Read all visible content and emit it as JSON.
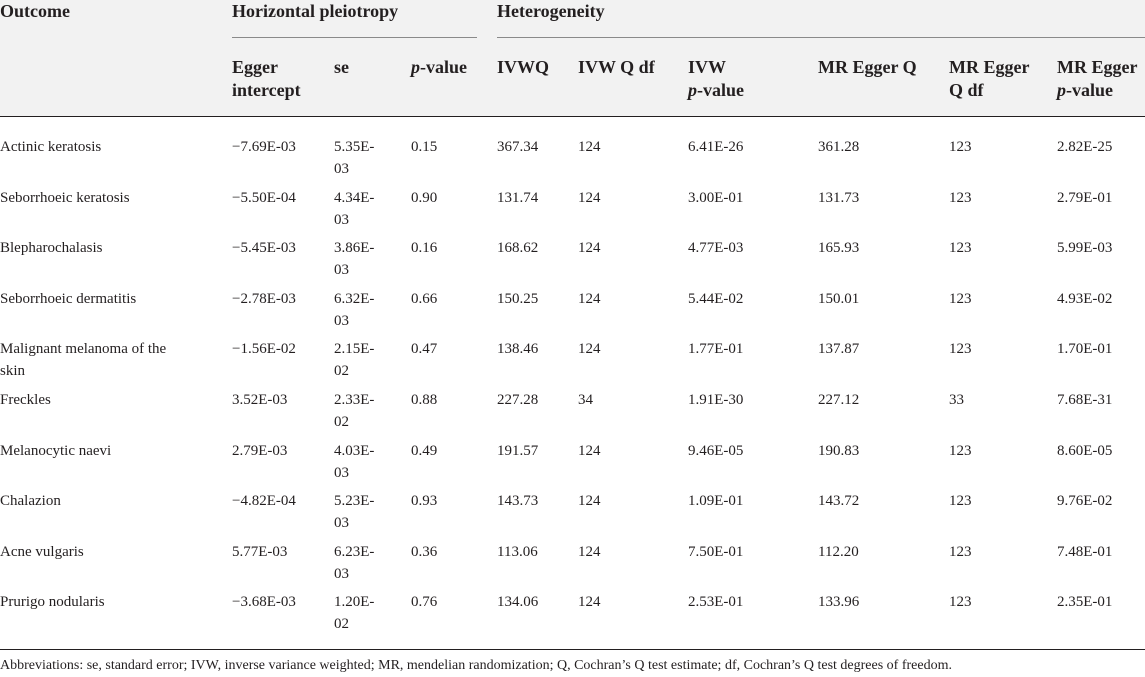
{
  "table": {
    "group_headers": {
      "outcome": "Outcome",
      "horizontal_pleiotropy": "Horizontal pleiotropy",
      "heterogeneity": "Heterogeneity"
    },
    "sub_headers": {
      "egger_intercept_1": "Egger",
      "egger_intercept_2": "intercept",
      "se": "se",
      "p_italic": "p",
      "p_rest": "-value",
      "ivwq": "IVWQ",
      "ivw_q_df": "IVW Q df",
      "ivw_p_1": "IVW",
      "ivw_p_italic": "p",
      "ivw_p_rest": "-value",
      "mr_egger_q": "MR Egger Q",
      "mr_egger_q_df_1": "MR Egger",
      "mr_egger_q_df_2": "Q df",
      "mr_egger_p_1": "MR Egger",
      "mr_egger_p_italic": "p",
      "mr_egger_p_rest": "-value"
    },
    "rows": [
      {
        "outcome_1": "Actinic keratosis",
        "outcome_2": "",
        "intercept": "−7.69E-03",
        "se_1": "5.35E-",
        "se_2": "03",
        "p": "0.15",
        "ivwq": "367.34",
        "ivw_df": "124",
        "ivw_p": "6.41E-26",
        "egger_q": "361.28",
        "egger_df": "123",
        "egger_p": "2.82E-25"
      },
      {
        "outcome_1": "Seborrhoeic keratosis",
        "outcome_2": "",
        "intercept": "−5.50E-04",
        "se_1": "4.34E-",
        "se_2": "03",
        "p": "0.90",
        "ivwq": "131.74",
        "ivw_df": "124",
        "ivw_p": "3.00E-01",
        "egger_q": "131.73",
        "egger_df": "123",
        "egger_p": "2.79E-01"
      },
      {
        "outcome_1": "Blepharochalasis",
        "outcome_2": "",
        "intercept": "−5.45E-03",
        "se_1": "3.86E-",
        "se_2": "03",
        "p": "0.16",
        "ivwq": "168.62",
        "ivw_df": "124",
        "ivw_p": "4.77E-03",
        "egger_q": "165.93",
        "egger_df": "123",
        "egger_p": "5.99E-03"
      },
      {
        "outcome_1": "Seborrhoeic dermatitis",
        "outcome_2": "",
        "intercept": "−2.78E-03",
        "se_1": "6.32E-",
        "se_2": "03",
        "p": "0.66",
        "ivwq": "150.25",
        "ivw_df": "124",
        "ivw_p": "5.44E-02",
        "egger_q": "150.01",
        "egger_df": "123",
        "egger_p": "4.93E-02"
      },
      {
        "outcome_1": "Malignant melanoma of the",
        "outcome_2": "skin",
        "intercept": "−1.56E-02",
        "se_1": "2.15E-",
        "se_2": "02",
        "p": "0.47",
        "ivwq": "138.46",
        "ivw_df": "124",
        "ivw_p": "1.77E-01",
        "egger_q": "137.87",
        "egger_df": "123",
        "egger_p": "1.70E-01"
      },
      {
        "outcome_1": "Freckles",
        "outcome_2": "",
        "intercept": "3.52E-03",
        "se_1": "2.33E-",
        "se_2": "02",
        "p": "0.88",
        "ivwq": "227.28",
        "ivw_df": "34",
        "ivw_p": "1.91E-30",
        "egger_q": "227.12",
        "egger_df": "33",
        "egger_p": "7.68E-31"
      },
      {
        "outcome_1": "Melanocytic naevi",
        "outcome_2": "",
        "intercept": "2.79E-03",
        "se_1": "4.03E-",
        "se_2": "03",
        "p": "0.49",
        "ivwq": "191.57",
        "ivw_df": "124",
        "ivw_p": "9.46E-05",
        "egger_q": "190.83",
        "egger_df": "123",
        "egger_p": "8.60E-05"
      },
      {
        "outcome_1": "Chalazion",
        "outcome_2": "",
        "intercept": "−4.82E-04",
        "se_1": "5.23E-",
        "se_2": "03",
        "p": "0.93",
        "ivwq": "143.73",
        "ivw_df": "124",
        "ivw_p": "1.09E-01",
        "egger_q": "143.72",
        "egger_df": "123",
        "egger_p": "9.76E-02"
      },
      {
        "outcome_1": "Acne vulgaris",
        "outcome_2": "",
        "intercept": "5.77E-03",
        "se_1": "6.23E-",
        "se_2": "03",
        "p": "0.36",
        "ivwq": "113.06",
        "ivw_df": "124",
        "ivw_p": "7.50E-01",
        "egger_q": "112.20",
        "egger_df": "123",
        "egger_p": "7.48E-01"
      },
      {
        "outcome_1": "Prurigo nodularis",
        "outcome_2": "",
        "intercept": "−3.68E-03",
        "se_1": "1.20E-",
        "se_2": "02",
        "p": "0.76",
        "ivwq": "134.06",
        "ivw_df": "124",
        "ivw_p": "2.53E-01",
        "egger_q": "133.96",
        "egger_df": "123",
        "egger_p": "2.35E-01"
      }
    ],
    "footnote": "Abbreviations: se, standard error; IVW, inverse variance weighted; MR, mendelian randomization; Q, Cochran’s Q test estimate; df, Cochran’s Q test degrees of freedom."
  }
}
